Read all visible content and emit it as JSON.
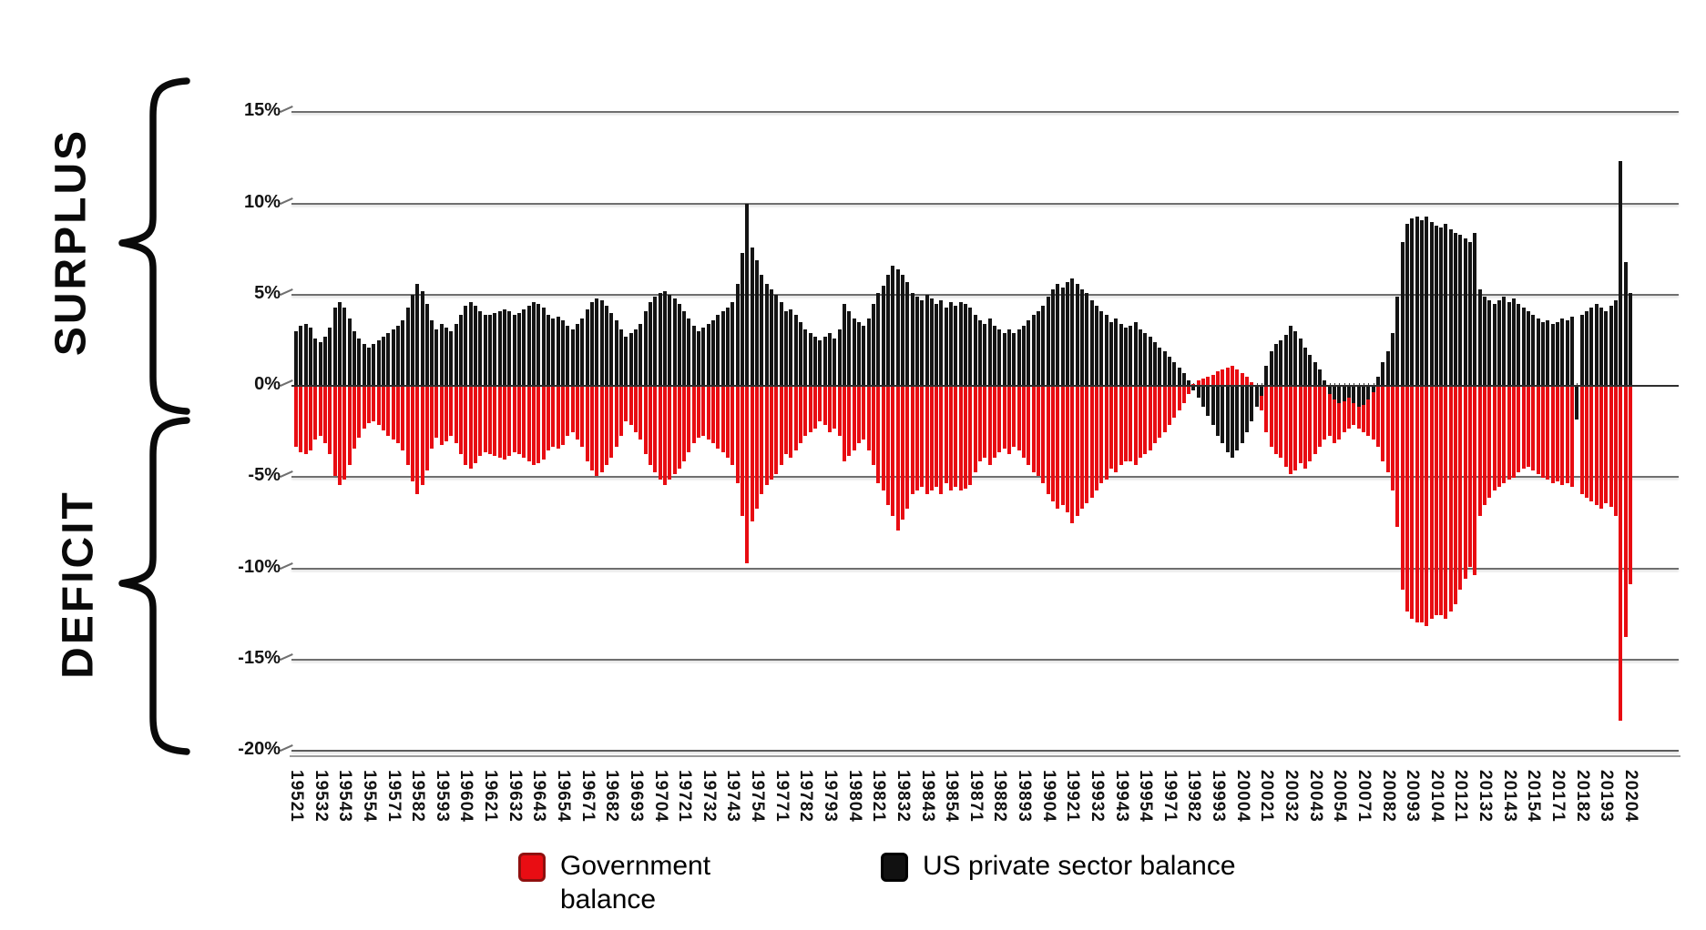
{
  "annotations": {
    "surplus": "SURPLUS",
    "deficit": "DEFICIT"
  },
  "legend": {
    "position": "bottom",
    "items": [
      {
        "label": "Government balance",
        "color": "#e90d13"
      },
      {
        "label": "US private sector balance",
        "color": "#141414"
      }
    ]
  },
  "chart_data": {
    "type": "bar",
    "title": "",
    "xlabel": "",
    "ylabel": "",
    "ylim": [
      -20,
      15
    ],
    "grid": true,
    "x_unit": "year+quarter (e.g. 19521 = 1952 Q1), quarterly 1952Q1-2020Q4",
    "y_ticks": [
      15,
      10,
      5,
      0,
      -5,
      -10,
      -15,
      -20
    ],
    "y_tick_labels": [
      "15%",
      "10%",
      "5%",
      "0%",
      "-5%",
      "-10%",
      "-15%",
      "-20%"
    ],
    "x_tick_labels": [
      "19521",
      "19532",
      "19543",
      "19554",
      "19571",
      "19582",
      "19593",
      "19604",
      "19621",
      "19632",
      "19643",
      "19654",
      "19671",
      "19682",
      "19693",
      "19704",
      "19721",
      "19732",
      "19743",
      "19754",
      "19771",
      "19782",
      "19793",
      "19804",
      "19821",
      "19832",
      "19843",
      "19854",
      "19871",
      "19882",
      "19893",
      "19904",
      "19921",
      "19932",
      "19943",
      "19954",
      "19971",
      "19982",
      "19993",
      "20004",
      "20021",
      "20032",
      "20043",
      "20054",
      "20071",
      "20082",
      "20093",
      "20104",
      "20121",
      "20132",
      "20143",
      "20154",
      "20171",
      "20182",
      "20193",
      "20204"
    ],
    "series": [
      {
        "name": "Government balance",
        "color": "#e80c12",
        "values": [
          -3.3,
          -3.6,
          -3.7,
          -3.5,
          -2.9,
          -2.7,
          -3.1,
          -3.7,
          -4.9,
          -5.4,
          -5.1,
          -4.3,
          -3.4,
          -2.8,
          -2.3,
          -2.0,
          -1.9,
          -2.1,
          -2.4,
          -2.7,
          -2.9,
          -3.1,
          -3.5,
          -4.3,
          -5.2,
          -5.9,
          -5.4,
          -4.6,
          -3.4,
          -2.8,
          -3.2,
          -3.0,
          -2.7,
          -3.1,
          -3.7,
          -4.3,
          -4.5,
          -4.2,
          -3.8,
          -3.6,
          -3.7,
          -3.8,
          -3.9,
          -4.0,
          -3.8,
          -3.6,
          -3.7,
          -3.9,
          -4.1,
          -4.3,
          -4.2,
          -4.0,
          -3.5,
          -3.3,
          -3.4,
          -3.2,
          -2.7,
          -2.5,
          -2.9,
          -3.3,
          -4.1,
          -4.6,
          -4.9,
          -4.7,
          -4.3,
          -3.9,
          -3.3,
          -2.7,
          -1.9,
          -2.1,
          -2.5,
          -2.9,
          -3.7,
          -4.3,
          -4.7,
          -5.1,
          -5.4,
          -5.1,
          -4.8,
          -4.5,
          -4.1,
          -3.6,
          -3.1,
          -2.8,
          -2.7,
          -2.9,
          -3.1,
          -3.4,
          -3.6,
          -3.9,
          -4.3,
          -5.3,
          -7.1,
          -9.7,
          -7.4,
          -6.7,
          -5.9,
          -5.4,
          -5.1,
          -4.8,
          -4.3,
          -3.7,
          -3.9,
          -3.5,
          -3.1,
          -2.7,
          -2.5,
          -2.3,
          -1.9,
          -2.1,
          -2.5,
          -2.3,
          -2.7,
          -4.1,
          -3.8,
          -3.5,
          -3.1,
          -2.9,
          -3.5,
          -4.3,
          -5.3,
          -5.7,
          -6.5,
          -7.1,
          -7.9,
          -7.3,
          -6.7,
          -5.9,
          -5.7,
          -5.5,
          -5.9,
          -5.7,
          -5.5,
          -5.9,
          -5.3,
          -5.7,
          -5.5,
          -5.7,
          -5.6,
          -5.4,
          -4.7,
          -4.1,
          -3.9,
          -4.3,
          -3.9,
          -3.6,
          -3.4,
          -3.7,
          -3.3,
          -3.5,
          -3.9,
          -4.3,
          -4.7,
          -4.9,
          -5.3,
          -5.9,
          -6.3,
          -6.7,
          -6.5,
          -6.9,
          -7.5,
          -7.1,
          -6.7,
          -6.4,
          -6.1,
          -5.7,
          -5.3,
          -5.1,
          -4.5,
          -4.7,
          -4.3,
          -4.1,
          -4.1,
          -4.3,
          -3.9,
          -3.7,
          -3.5,
          -3.1,
          -2.8,
          -2.5,
          -2.1,
          -1.7,
          -1.3,
          -0.9,
          -0.4,
          0.1,
          0.3,
          0.4,
          0.5,
          0.6,
          0.8,
          0.9,
          1.0,
          1.1,
          0.9,
          0.7,
          0.5,
          0.2,
          -0.6,
          -1.3,
          -2.5,
          -3.3,
          -3.7,
          -3.9,
          -4.4,
          -4.8,
          -4.6,
          -4.2,
          -4.5,
          -4.1,
          -3.7,
          -3.3,
          -2.9,
          -2.7,
          -3.1,
          -2.9,
          -2.5,
          -2.3,
          -2.1,
          -2.3,
          -2.5,
          -2.7,
          -2.9,
          -3.3,
          -4.1,
          -4.7,
          -5.7,
          -7.7,
          -11.1,
          -12.3,
          -12.7,
          -12.9,
          -12.9,
          -13.1,
          -12.7,
          -12.5,
          -12.5,
          -12.7,
          -12.3,
          -11.9,
          -11.1,
          -10.5,
          -9.9,
          -10.3,
          -7.1,
          -6.5,
          -6.1,
          -5.7,
          -5.5,
          -5.3,
          -5.1,
          -5.0,
          -4.7,
          -4.5,
          -4.4,
          -4.6,
          -4.8,
          -5.0,
          -5.1,
          -5.3,
          -5.2,
          -5.4,
          -5.3,
          -5.5,
          -0.9,
          -5.9,
          -6.1,
          -6.3,
          -6.5,
          -6.7,
          -6.4,
          -6.6,
          -7.1,
          -18.3,
          -13.7,
          -10.8
        ]
      },
      {
        "name": "US private sector balance",
        "color": "#141414",
        "values": [
          3.0,
          3.3,
          3.4,
          3.2,
          2.6,
          2.4,
          2.7,
          3.2,
          4.3,
          4.6,
          4.3,
          3.7,
          3.0,
          2.6,
          2.3,
          2.1,
          2.3,
          2.5,
          2.7,
          2.9,
          3.1,
          3.3,
          3.6,
          4.3,
          5.0,
          5.6,
          5.2,
          4.5,
          3.6,
          3.1,
          3.4,
          3.2,
          3.0,
          3.4,
          3.9,
          4.4,
          4.6,
          4.4,
          4.1,
          3.9,
          3.9,
          4.0,
          4.1,
          4.2,
          4.1,
          3.9,
          4.0,
          4.2,
          4.4,
          4.6,
          4.5,
          4.3,
          3.9,
          3.7,
          3.8,
          3.6,
          3.3,
          3.1,
          3.4,
          3.7,
          4.2,
          4.6,
          4.8,
          4.7,
          4.4,
          4.0,
          3.6,
          3.1,
          2.7,
          2.9,
          3.1,
          3.4,
          4.1,
          4.6,
          4.9,
          5.1,
          5.2,
          5.0,
          4.8,
          4.5,
          4.1,
          3.7,
          3.3,
          3.0,
          3.2,
          3.4,
          3.6,
          3.9,
          4.1,
          4.3,
          4.6,
          5.6,
          7.3,
          10.0,
          7.6,
          6.9,
          6.1,
          5.6,
          5.3,
          5.0,
          4.6,
          4.1,
          4.2,
          3.9,
          3.5,
          3.1,
          2.9,
          2.7,
          2.5,
          2.7,
          2.9,
          2.6,
          3.1,
          4.5,
          4.1,
          3.7,
          3.5,
          3.3,
          3.7,
          4.5,
          5.1,
          5.5,
          6.1,
          6.6,
          6.4,
          6.1,
          5.7,
          5.1,
          4.9,
          4.7,
          5.0,
          4.8,
          4.5,
          4.7,
          4.3,
          4.6,
          4.4,
          4.6,
          4.5,
          4.3,
          3.9,
          3.6,
          3.4,
          3.7,
          3.3,
          3.1,
          2.9,
          3.1,
          2.9,
          3.1,
          3.3,
          3.6,
          3.9,
          4.1,
          4.4,
          4.9,
          5.3,
          5.6,
          5.4,
          5.7,
          5.9,
          5.6,
          5.3,
          5.1,
          4.7,
          4.4,
          4.1,
          3.9,
          3.5,
          3.7,
          3.4,
          3.2,
          3.3,
          3.5,
          3.1,
          2.9,
          2.7,
          2.4,
          2.1,
          1.9,
          1.6,
          1.3,
          1.0,
          0.7,
          0.3,
          -0.2,
          -0.6,
          -1.1,
          -1.6,
          -2.1,
          -2.7,
          -3.1,
          -3.6,
          -3.9,
          -3.5,
          -3.1,
          -2.5,
          -1.9,
          -1.1,
          -0.5,
          1.1,
          1.9,
          2.3,
          2.5,
          2.8,
          3.3,
          3.0,
          2.6,
          2.1,
          1.7,
          1.3,
          0.9,
          0.3,
          -0.4,
          -0.7,
          -0.9,
          -0.8,
          -0.6,
          -0.9,
          -1.1,
          -1.0,
          -0.7,
          -0.3,
          0.5,
          1.3,
          1.9,
          2.9,
          4.9,
          7.9,
          8.9,
          9.2,
          9.3,
          9.1,
          9.3,
          9.0,
          8.8,
          8.7,
          8.9,
          8.6,
          8.4,
          8.3,
          8.1,
          7.9,
          8.4,
          5.3,
          4.9,
          4.7,
          4.5,
          4.7,
          4.9,
          4.6,
          4.8,
          4.5,
          4.3,
          4.1,
          3.9,
          3.7,
          3.5,
          3.6,
          3.4,
          3.5,
          3.7,
          3.6,
          3.8,
          -1.8,
          3.9,
          4.1,
          4.3,
          4.5,
          4.3,
          4.1,
          4.4,
          4.7,
          12.3,
          6.8,
          5.1
        ]
      }
    ]
  }
}
